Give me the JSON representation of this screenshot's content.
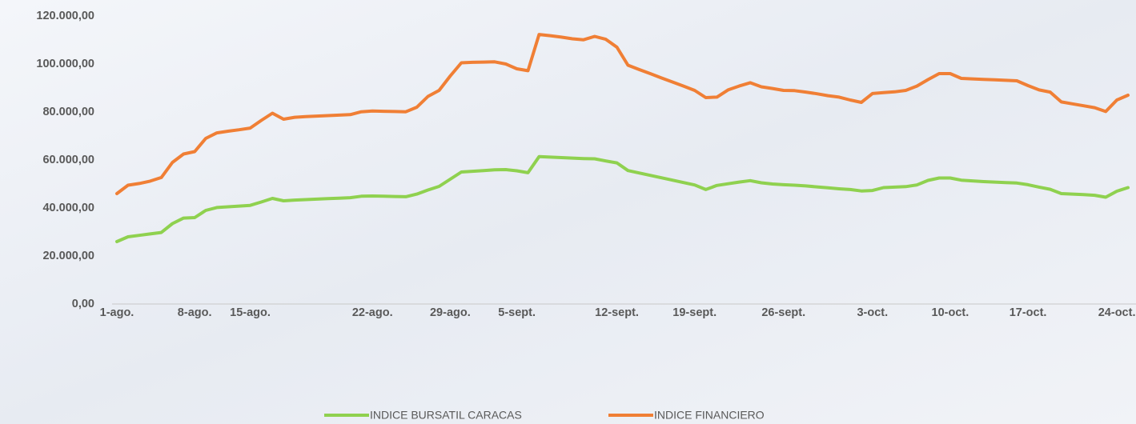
{
  "chart_data": {
    "type": "line",
    "categories": [
      "1-ago.",
      null,
      null,
      null,
      null,
      null,
      null,
      "8-ago.",
      null,
      null,
      null,
      null,
      "15-ago.",
      null,
      null,
      null,
      null,
      null,
      null,
      null,
      null,
      null,
      null,
      "22-ago.",
      null,
      null,
      null,
      null,
      null,
      null,
      "29-ago.",
      null,
      null,
      null,
      null,
      null,
      "5-sept.",
      null,
      null,
      null,
      null,
      null,
      null,
      null,
      null,
      "12-sept.",
      null,
      null,
      null,
      null,
      null,
      null,
      "19-sept.",
      null,
      null,
      null,
      null,
      null,
      null,
      null,
      "26-sept.",
      null,
      null,
      null,
      null,
      null,
      null,
      null,
      "3-oct.",
      null,
      null,
      null,
      null,
      null,
      null,
      "10-oct.",
      null,
      null,
      null,
      null,
      null,
      null,
      "17-oct.",
      null,
      null,
      null,
      null,
      null,
      null,
      null,
      "24-oct.",
      null
    ],
    "series": [
      {
        "name": "INDICE BURSATIL CARACAS",
        "color": "#8fd14f",
        "values": [
          26000,
          28000,
          28600,
          29200,
          29800,
          33500,
          35800,
          36000,
          39000,
          40200,
          40500,
          40800,
          41100,
          42500,
          44000,
          43000,
          43300,
          43500,
          43700,
          43900,
          44100,
          44300,
          44900,
          45000,
          44900,
          44800,
          44700,
          45800,
          47500,
          49000,
          52000,
          55000,
          55300,
          55600,
          55900,
          56000,
          55500,
          54700,
          61400,
          61200,
          61000,
          60800,
          60600,
          60500,
          59600,
          58800,
          55600,
          54600,
          53600,
          52600,
          51600,
          50600,
          49600,
          47700,
          49400,
          50100,
          50800,
          51400,
          50500,
          50000,
          49700,
          49500,
          49200,
          48800,
          48400,
          48000,
          47700,
          47100,
          47300,
          48500,
          48700,
          48900,
          49600,
          51500,
          52500,
          52500,
          51600,
          51300,
          51000,
          50800,
          50600,
          50400,
          49700,
          48700,
          47800,
          46000,
          45800,
          45600,
          45300,
          44500,
          47000,
          48500
        ]
      },
      {
        "name": "INDICE FINANCIERO",
        "color": "#f07f35",
        "values": [
          46000,
          49500,
          50200,
          51200,
          52700,
          59000,
          62500,
          63500,
          69000,
          71300,
          72000,
          72600,
          73300,
          76500,
          79500,
          77000,
          77800,
          78100,
          78300,
          78500,
          78700,
          78900,
          80100,
          80400,
          80300,
          80200,
          80100,
          82000,
          86500,
          89000,
          95000,
          100500,
          100700,
          100800,
          100900,
          100000,
          98000,
          97200,
          112300,
          111800,
          111200,
          110500,
          110100,
          111500,
          110300,
          107000,
          99500,
          97700,
          96000,
          94200,
          92500,
          90800,
          89000,
          86000,
          86200,
          89200,
          90800,
          92200,
          90500,
          89800,
          89000,
          88900,
          88300,
          87600,
          86800,
          86200,
          85000,
          84000,
          87700,
          88100,
          88400,
          89000,
          90800,
          93500,
          96000,
          96000,
          94000,
          93800,
          93600,
          93400,
          93200,
          93000,
          91000,
          89200,
          88300,
          84200,
          83400,
          82600,
          81800,
          80200,
          85000,
          87000
        ]
      }
    ],
    "ylim": [
      0,
      120000
    ],
    "yticks": [
      {
        "value": 0,
        "label": "0,00"
      },
      {
        "value": 20000,
        "label": "20.000,00"
      },
      {
        "value": 40000,
        "label": "40.000,00"
      },
      {
        "value": 60000,
        "label": "60.000,00"
      },
      {
        "value": 80000,
        "label": "80.000,00"
      },
      {
        "value": 100000,
        "label": "100.000,00"
      },
      {
        "value": 120000,
        "label": "120.000,00"
      }
    ],
    "legend": "bottom"
  }
}
